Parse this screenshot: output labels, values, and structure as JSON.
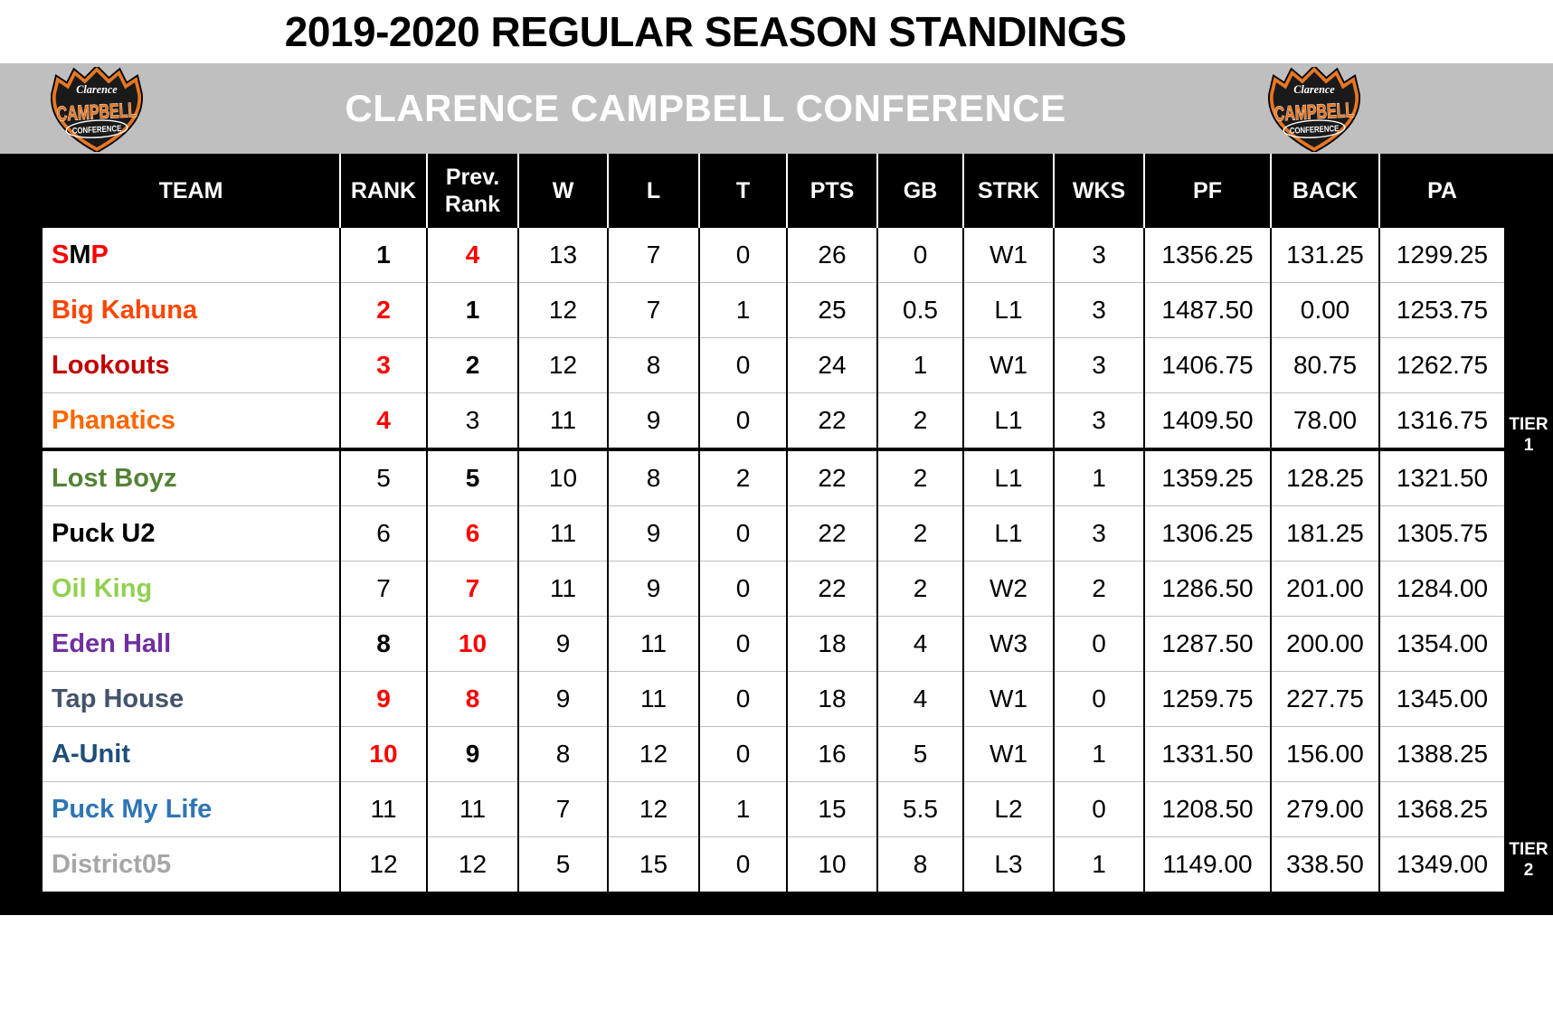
{
  "header": {
    "title": "2019-2020 REGULAR SEASON STANDINGS"
  },
  "conference_bar": {
    "title": "CLARENCE CAMPBELL CONFERENCE",
    "logo": {
      "top": "Clarence",
      "main": "CAMPBELL",
      "bottom": "CONFERENCE"
    }
  },
  "colors": {
    "band_gray": "#BFBFBF",
    "header_bg": "#000000",
    "red": "#FF0000",
    "logo_orange": "#E87722",
    "grid_gray": "#BFBFBF"
  },
  "chart_data": {
    "type": "table",
    "title": "2019-2020 REGULAR SEASON STANDINGS",
    "subtitle": "CLARENCE CAMPBELL CONFERENCE",
    "columns": [
      "TEAM",
      "RANK",
      "Prev. Rank",
      "W",
      "L",
      "T",
      "PTS",
      "GB",
      "STRK",
      "WKS",
      "PF",
      "BACK",
      "PA"
    ],
    "tier1_row_count": 4,
    "tier_labels": [
      [
        "TIER",
        "1"
      ],
      [
        "TIER",
        "2"
      ]
    ],
    "teams": [
      {
        "name": "SMP",
        "name_parts": [
          [
            "S",
            "#FF0000"
          ],
          [
            "M",
            "#000000"
          ],
          [
            "P",
            "#FF0000"
          ]
        ],
        "rank": {
          "v": "1",
          "red": false,
          "bold": true
        },
        "prev": {
          "v": "4",
          "red": true,
          "bold": true
        },
        "w": "13",
        "l": "7",
        "t": "0",
        "pts": "26",
        "gb": "0",
        "strk": "W1",
        "wks": "3",
        "pf": "1356.25",
        "back": "131.25",
        "pa": "1299.25"
      },
      {
        "name": "Big Kahuna",
        "name_parts": [
          [
            "Big Kahuna",
            "#FF4500"
          ]
        ],
        "rank": {
          "v": "2",
          "red": true,
          "bold": true
        },
        "prev": {
          "v": "1",
          "red": false,
          "bold": true
        },
        "w": "12",
        "l": "7",
        "t": "1",
        "pts": "25",
        "gb": "0.5",
        "strk": "L1",
        "wks": "3",
        "pf": "1487.50",
        "back": "0.00",
        "pa": "1253.75"
      },
      {
        "name": "Lookouts",
        "name_parts": [
          [
            "Lookouts",
            "#C00000"
          ]
        ],
        "rank": {
          "v": "3",
          "red": true,
          "bold": true
        },
        "prev": {
          "v": "2",
          "red": false,
          "bold": true
        },
        "w": "12",
        "l": "8",
        "t": "0",
        "pts": "24",
        "gb": "1",
        "strk": "W1",
        "wks": "3",
        "pf": "1406.75",
        "back": "80.75",
        "pa": "1262.75"
      },
      {
        "name": "Phanatics",
        "name_parts": [
          [
            "Phanatics",
            "#FF6600"
          ]
        ],
        "rank": {
          "v": "4",
          "red": true,
          "bold": true
        },
        "prev": {
          "v": "3",
          "red": false,
          "bold": false
        },
        "w": "11",
        "l": "9",
        "t": "0",
        "pts": "22",
        "gb": "2",
        "strk": "L1",
        "wks": "3",
        "pf": "1409.50",
        "back": "78.00",
        "pa": "1316.75"
      },
      {
        "name": "Lost Boyz",
        "name_parts": [
          [
            "Lost Boyz",
            "#548235"
          ]
        ],
        "rank": {
          "v": "5",
          "red": false,
          "bold": false
        },
        "prev": {
          "v": "5",
          "red": false,
          "bold": true
        },
        "w": "10",
        "l": "8",
        "t": "2",
        "pts": "22",
        "gb": "2",
        "strk": "L1",
        "wks": "1",
        "pf": "1359.25",
        "back": "128.25",
        "pa": "1321.50"
      },
      {
        "name": "Puck U2",
        "name_parts": [
          [
            "Puck U2",
            "#000000"
          ]
        ],
        "rank": {
          "v": "6",
          "red": false,
          "bold": false
        },
        "prev": {
          "v": "6",
          "red": true,
          "bold": true
        },
        "w": "11",
        "l": "9",
        "t": "0",
        "pts": "22",
        "gb": "2",
        "strk": "L1",
        "wks": "3",
        "pf": "1306.25",
        "back": "181.25",
        "pa": "1305.75"
      },
      {
        "name": "Oil King",
        "name_parts": [
          [
            "Oil King",
            "#92D050"
          ]
        ],
        "rank": {
          "v": "7",
          "red": false,
          "bold": false
        },
        "prev": {
          "v": "7",
          "red": true,
          "bold": true
        },
        "w": "11",
        "l": "9",
        "t": "0",
        "pts": "22",
        "gb": "2",
        "strk": "W2",
        "wks": "2",
        "pf": "1286.50",
        "back": "201.00",
        "pa": "1284.00"
      },
      {
        "name": "Eden Hall",
        "name_parts": [
          [
            "Eden Hall",
            "#7030A0"
          ]
        ],
        "rank": {
          "v": "8",
          "red": false,
          "bold": true
        },
        "prev": {
          "v": "10",
          "red": true,
          "bold": true
        },
        "w": "9",
        "l": "11",
        "t": "0",
        "pts": "18",
        "gb": "4",
        "strk": "W3",
        "wks": "0",
        "pf": "1287.50",
        "back": "200.00",
        "pa": "1354.00"
      },
      {
        "name": "Tap House",
        "name_parts": [
          [
            "Tap House",
            "#44546A"
          ]
        ],
        "rank": {
          "v": "9",
          "red": true,
          "bold": true
        },
        "prev": {
          "v": "8",
          "red": true,
          "bold": true
        },
        "w": "9",
        "l": "11",
        "t": "0",
        "pts": "18",
        "gb": "4",
        "strk": "W1",
        "wks": "0",
        "pf": "1259.75",
        "back": "227.75",
        "pa": "1345.00"
      },
      {
        "name": "A-Unit",
        "name_parts": [
          [
            "A-Unit",
            "#1F4E79"
          ]
        ],
        "rank": {
          "v": "10",
          "red": true,
          "bold": true
        },
        "prev": {
          "v": "9",
          "red": false,
          "bold": true
        },
        "w": "8",
        "l": "12",
        "t": "0",
        "pts": "16",
        "gb": "5",
        "strk": "W1",
        "wks": "1",
        "pf": "1331.50",
        "back": "156.00",
        "pa": "1388.25"
      },
      {
        "name": "Puck My Life",
        "name_parts": [
          [
            "Puck My Life",
            "#2E75B6"
          ]
        ],
        "rank": {
          "v": "11",
          "red": false,
          "bold": false
        },
        "prev": {
          "v": "11",
          "red": false,
          "bold": false
        },
        "w": "7",
        "l": "12",
        "t": "1",
        "pts": "15",
        "gb": "5.5",
        "strk": "L2",
        "wks": "0",
        "pf": "1208.50",
        "back": "279.00",
        "pa": "1368.25"
      },
      {
        "name": "District05",
        "name_parts": [
          [
            "District05",
            "#A6A6A6"
          ]
        ],
        "rank": {
          "v": "12",
          "red": false,
          "bold": false
        },
        "prev": {
          "v": "12",
          "red": false,
          "bold": false
        },
        "w": "5",
        "l": "15",
        "t": "0",
        "pts": "10",
        "gb": "8",
        "strk": "L3",
        "wks": "1",
        "pf": "1149.00",
        "back": "338.50",
        "pa": "1349.00"
      }
    ]
  }
}
